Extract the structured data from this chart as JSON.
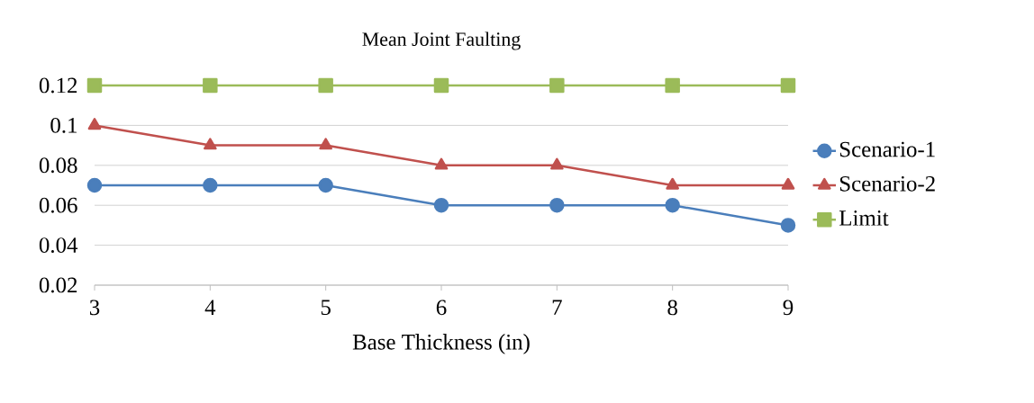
{
  "chart_data": {
    "type": "line",
    "title": "Mean Joint Faulting",
    "xlabel": "Base Thickness (in)",
    "categories": [
      "3",
      "4",
      "5",
      "6",
      "7",
      "8",
      "9"
    ],
    "series": [
      {
        "name": "Scenario-1",
        "color": "#4a7ebb",
        "marker": "circle",
        "values": [
          0.07,
          0.07,
          0.07,
          0.06,
          0.06,
          0.06,
          0.05
        ]
      },
      {
        "name": "Scenario-2",
        "color": "#c0504d",
        "marker": "triangle",
        "values": [
          0.1,
          0.09,
          0.09,
          0.08,
          0.08,
          0.07,
          0.07
        ]
      },
      {
        "name": "Limit",
        "color": "#9bbb59",
        "marker": "square",
        "values": [
          0.12,
          0.12,
          0.12,
          0.12,
          0.12,
          0.12,
          0.12
        ]
      }
    ],
    "ylim": [
      0.02,
      0.12
    ],
    "yticks": [
      0.02,
      0.04,
      0.06,
      0.08,
      0.1,
      0.12
    ],
    "grid": "y",
    "legend": "right",
    "line_style": "solid"
  }
}
